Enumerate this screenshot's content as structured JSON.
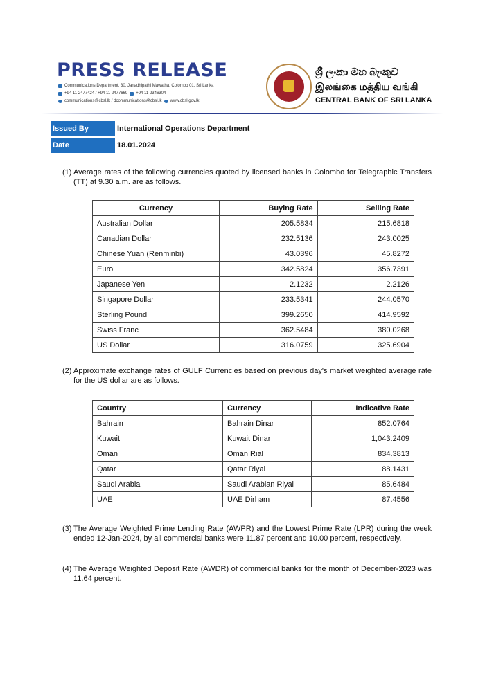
{
  "header": {
    "title": "PRESS RELEASE",
    "address": "Communications Department, 30, Janadhipathi Mawatha, Colombo 01, Sri Lanka",
    "phone": "+94 11 2477424 / +94 11 2477669",
    "fax": "+94 11  2346304",
    "email": "communications@cbsl.lk / dcommunications@cbsl.lk",
    "website": "www.cbsl.gov.lk",
    "bank_sinhala": "ශ්‍රී ලංකා මහ බැංකුව",
    "bank_tamil": "இலங்கை மத்திய வங்கி",
    "bank_english": "CENTRAL BANK OF SRI LANKA"
  },
  "meta": {
    "issued_by_label": "Issued By",
    "issued_by": "International Operations Department",
    "date_label": "Date",
    "date": "18.01.2024"
  },
  "para1": {
    "num": "(1)",
    "text": "Average rates of the following currencies quoted by licensed banks in Colombo for Telegraphic Transfers (TT) at 9.30 a.m. are as follows."
  },
  "table1": {
    "headers": [
      "Currency",
      "Buying Rate",
      "Selling Rate"
    ],
    "rows": [
      [
        "Australian Dollar",
        "205.5834",
        "215.6818"
      ],
      [
        "Canadian Dollar",
        "232.5136",
        "243.0025"
      ],
      [
        "Chinese Yuan (Renminbi)",
        "43.0396",
        "45.8272"
      ],
      [
        "Euro",
        "342.5824",
        "356.7391"
      ],
      [
        "Japanese Yen",
        "2.1232",
        "2.2126"
      ],
      [
        "Singapore Dollar",
        "233.5341",
        "244.0570"
      ],
      [
        "Sterling Pound",
        "399.2650",
        "414.9592"
      ],
      [
        "Swiss Franc",
        "362.5484",
        "380.0268"
      ],
      [
        "US Dollar",
        "316.0759",
        "325.6904"
      ]
    ]
  },
  "para2": {
    "num": "(2)",
    "text": "Approximate exchange rates of GULF Currencies based on previous day's market weighted average rate for the US dollar are as follows."
  },
  "table2": {
    "headers": [
      "Country",
      "Currency",
      "Indicative Rate"
    ],
    "rows": [
      [
        "Bahrain",
        "Bahrain Dinar",
        "852.0764"
      ],
      [
        "Kuwait",
        "Kuwait Dinar",
        "1,043.2409"
      ],
      [
        "Oman",
        "Oman Rial",
        "834.3813"
      ],
      [
        "Qatar",
        "Qatar Riyal",
        "88.1431"
      ],
      [
        "Saudi Arabia",
        "Saudi Arabian Riyal",
        "85.6484"
      ],
      [
        "UAE",
        "UAE Dirham",
        "87.4556"
      ]
    ]
  },
  "para3": {
    "num": "(3)",
    "text": "The Average Weighted Prime Lending Rate (AWPR) and the Lowest Prime Rate (LPR) during the week ended 12-Jan-2024, by all commercial banks were 11.87 percent and 10.00 percent, respectively."
  },
  "para4": {
    "num": "(4)",
    "text": "The Average Weighted Deposit Rate (AWDR) of commercial banks for the month of December-2023 was 11.64 percent."
  },
  "colors": {
    "brand": "#2b3d8f",
    "label_bg": "#1f6fc0"
  }
}
